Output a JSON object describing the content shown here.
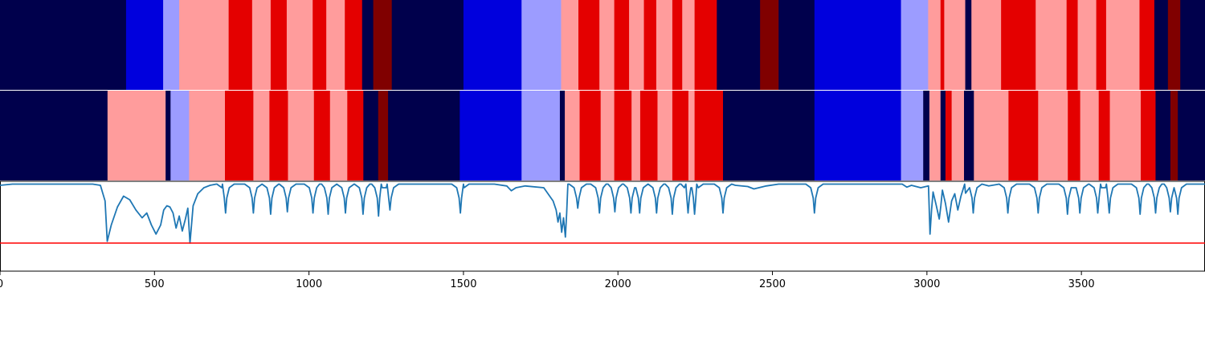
{
  "chart_data": [
    {
      "type": "heatmap",
      "panel": "top-strip",
      "colormap": "seismic",
      "xlim": [
        0,
        3900
      ],
      "segments": [
        {
          "x0": 0,
          "x1": 408,
          "color": "#00004c"
        },
        {
          "x0": 408,
          "x1": 528,
          "color": "#0000dd"
        },
        {
          "x0": 528,
          "x1": 580,
          "color": "#9c9cff"
        },
        {
          "x0": 580,
          "x1": 740,
          "color": "#ff9c9c"
        },
        {
          "x0": 740,
          "x1": 816,
          "color": "#e40000"
        },
        {
          "x0": 816,
          "x1": 876,
          "color": "#ff9c9c"
        },
        {
          "x0": 876,
          "x1": 928,
          "color": "#e40000"
        },
        {
          "x0": 928,
          "x1": 1012,
          "color": "#ff9c9c"
        },
        {
          "x0": 1012,
          "x1": 1056,
          "color": "#e40000"
        },
        {
          "x0": 1056,
          "x1": 1116,
          "color": "#ff9c9c"
        },
        {
          "x0": 1116,
          "x1": 1172,
          "color": "#e40000"
        },
        {
          "x0": 1172,
          "x1": 1208,
          "color": "#00004c"
        },
        {
          "x0": 1208,
          "x1": 1268,
          "color": "#800000"
        },
        {
          "x0": 1268,
          "x1": 1500,
          "color": "#00004c"
        },
        {
          "x0": 1500,
          "x1": 1688,
          "color": "#0000dd"
        },
        {
          "x0": 1688,
          "x1": 1816,
          "color": "#9c9cff"
        },
        {
          "x0": 1816,
          "x1": 1872,
          "color": "#ff9c9c"
        },
        {
          "x0": 1872,
          "x1": 1940,
          "color": "#e40000"
        },
        {
          "x0": 1940,
          "x1": 1988,
          "color": "#ff9c9c"
        },
        {
          "x0": 1988,
          "x1": 2036,
          "color": "#e40000"
        },
        {
          "x0": 2036,
          "x1": 2084,
          "color": "#ff9c9c"
        },
        {
          "x0": 2084,
          "x1": 2124,
          "color": "#e40000"
        },
        {
          "x0": 2124,
          "x1": 2176,
          "color": "#ff9c9c"
        },
        {
          "x0": 2176,
          "x1": 2208,
          "color": "#e40000"
        },
        {
          "x0": 2208,
          "x1": 2248,
          "color": "#ff9c9c"
        },
        {
          "x0": 2248,
          "x1": 2320,
          "color": "#e40000"
        },
        {
          "x0": 2320,
          "x1": 2460,
          "color": "#00004c"
        },
        {
          "x0": 2460,
          "x1": 2520,
          "color": "#800000"
        },
        {
          "x0": 2520,
          "x1": 2636,
          "color": "#00004c"
        },
        {
          "x0": 2636,
          "x1": 2916,
          "color": "#0000dd"
        },
        {
          "x0": 2916,
          "x1": 3004,
          "color": "#9c9cff"
        },
        {
          "x0": 3004,
          "x1": 3044,
          "color": "#ff9c9c"
        },
        {
          "x0": 3044,
          "x1": 3056,
          "color": "#e40000"
        },
        {
          "x0": 3056,
          "x1": 3124,
          "color": "#ff9c9c"
        },
        {
          "x0": 3124,
          "x1": 3144,
          "color": "#00004c"
        },
        {
          "x0": 3144,
          "x1": 3240,
          "color": "#ff9c9c"
        },
        {
          "x0": 3240,
          "x1": 3352,
          "color": "#e40000"
        },
        {
          "x0": 3352,
          "x1": 3452,
          "color": "#ff9c9c"
        },
        {
          "x0": 3452,
          "x1": 3488,
          "color": "#e40000"
        },
        {
          "x0": 3488,
          "x1": 3548,
          "color": "#ff9c9c"
        },
        {
          "x0": 3548,
          "x1": 3580,
          "color": "#e40000"
        },
        {
          "x0": 3580,
          "x1": 3688,
          "color": "#ff9c9c"
        },
        {
          "x0": 3688,
          "x1": 3736,
          "color": "#e40000"
        },
        {
          "x0": 3736,
          "x1": 3780,
          "color": "#00004c"
        },
        {
          "x0": 3780,
          "x1": 3820,
          "color": "#800000"
        },
        {
          "x0": 3820,
          "x1": 3900,
          "color": "#00004c"
        }
      ]
    },
    {
      "type": "heatmap",
      "panel": "middle-strip",
      "colormap": "seismic",
      "xlim": [
        0,
        3900
      ],
      "segments": [
        {
          "x0": 0,
          "x1": 348,
          "color": "#00004c"
        },
        {
          "x0": 348,
          "x1": 536,
          "color": "#ff9c9c"
        },
        {
          "x0": 536,
          "x1": 552,
          "color": "#00004c"
        },
        {
          "x0": 552,
          "x1": 612,
          "color": "#9c9cff"
        },
        {
          "x0": 612,
          "x1": 728,
          "color": "#ff9c9c"
        },
        {
          "x0": 728,
          "x1": 820,
          "color": "#e40000"
        },
        {
          "x0": 820,
          "x1": 872,
          "color": "#ff9c9c"
        },
        {
          "x0": 872,
          "x1": 932,
          "color": "#e40000"
        },
        {
          "x0": 932,
          "x1": 1016,
          "color": "#ff9c9c"
        },
        {
          "x0": 1016,
          "x1": 1068,
          "color": "#e40000"
        },
        {
          "x0": 1068,
          "x1": 1124,
          "color": "#ff9c9c"
        },
        {
          "x0": 1124,
          "x1": 1176,
          "color": "#e40000"
        },
        {
          "x0": 1176,
          "x1": 1224,
          "color": "#00004c"
        },
        {
          "x0": 1224,
          "x1": 1256,
          "color": "#800000"
        },
        {
          "x0": 1256,
          "x1": 1488,
          "color": "#00004c"
        },
        {
          "x0": 1488,
          "x1": 1688,
          "color": "#0000dd"
        },
        {
          "x0": 1688,
          "x1": 1812,
          "color": "#9c9cff"
        },
        {
          "x0": 1812,
          "x1": 1828,
          "color": "#00004c"
        },
        {
          "x0": 1828,
          "x1": 1876,
          "color": "#ff9c9c"
        },
        {
          "x0": 1876,
          "x1": 1944,
          "color": "#e40000"
        },
        {
          "x0": 1944,
          "x1": 1988,
          "color": "#ff9c9c"
        },
        {
          "x0": 1988,
          "x1": 2044,
          "color": "#e40000"
        },
        {
          "x0": 2044,
          "x1": 2072,
          "color": "#ff9c9c"
        },
        {
          "x0": 2072,
          "x1": 2128,
          "color": "#e40000"
        },
        {
          "x0": 2128,
          "x1": 2176,
          "color": "#ff9c9c"
        },
        {
          "x0": 2176,
          "x1": 2228,
          "color": "#e40000"
        },
        {
          "x0": 2228,
          "x1": 2248,
          "color": "#ff9c9c"
        },
        {
          "x0": 2248,
          "x1": 2340,
          "color": "#e40000"
        },
        {
          "x0": 2340,
          "x1": 2636,
          "color": "#00004c"
        },
        {
          "x0": 2636,
          "x1": 2916,
          "color": "#0000dd"
        },
        {
          "x0": 2916,
          "x1": 2988,
          "color": "#9c9cff"
        },
        {
          "x0": 2988,
          "x1": 3008,
          "color": "#00004c"
        },
        {
          "x0": 3008,
          "x1": 3044,
          "color": "#ff9c9c"
        },
        {
          "x0": 3044,
          "x1": 3060,
          "color": "#00004c"
        },
        {
          "x0": 3060,
          "x1": 3080,
          "color": "#e40000"
        },
        {
          "x0": 3080,
          "x1": 3120,
          "color": "#ff9c9c"
        },
        {
          "x0": 3120,
          "x1": 3152,
          "color": "#00004c"
        },
        {
          "x0": 3152,
          "x1": 3264,
          "color": "#ff9c9c"
        },
        {
          "x0": 3264,
          "x1": 3360,
          "color": "#e40000"
        },
        {
          "x0": 3360,
          "x1": 3456,
          "color": "#ff9c9c"
        },
        {
          "x0": 3456,
          "x1": 3496,
          "color": "#e40000"
        },
        {
          "x0": 3496,
          "x1": 3556,
          "color": "#ff9c9c"
        },
        {
          "x0": 3556,
          "x1": 3592,
          "color": "#e40000"
        },
        {
          "x0": 3592,
          "x1": 3692,
          "color": "#ff9c9c"
        },
        {
          "x0": 3692,
          "x1": 3740,
          "color": "#e40000"
        },
        {
          "x0": 3740,
          "x1": 3788,
          "color": "#00004c"
        },
        {
          "x0": 3788,
          "x1": 3812,
          "color": "#800000"
        },
        {
          "x0": 3812,
          "x1": 3900,
          "color": "#00004c"
        }
      ]
    },
    {
      "type": "line",
      "panel": "bottom-plot",
      "xlim": [
        0,
        3900
      ],
      "ylim": [
        0,
        1
      ],
      "x_ticks": [
        "0",
        "500",
        "1000",
        "1500",
        "2000",
        "2500",
        "3000",
        "3500"
      ],
      "x_tick_values": [
        0,
        500,
        1000,
        1500,
        2000,
        2500,
        3000,
        3500
      ],
      "grid": false,
      "series": [
        {
          "color": "#1f77b4",
          "baseline": 0.98,
          "x": [
            0,
            40,
            80,
            160,
            240,
            300,
            325,
            340,
            347,
            360,
            380,
            400,
            420,
            440,
            460,
            475,
            490,
            505,
            520,
            530,
            540,
            550,
            560,
            570,
            580,
            590,
            600,
            608,
            615,
            625,
            640,
            660,
            680,
            700,
            720,
            1500,
            1560,
            1600,
            1640,
            1655,
            1670,
            1700,
            1760,
            1790,
            1800,
            1806,
            1812,
            1818,
            1824,
            1830,
            1834,
            1838,
            2340,
            2380,
            2420,
            2440,
            2480,
            2520,
            2600,
            2920,
            2935,
            2950,
            2980,
            3005,
            3010,
            3015,
            3020,
            3030,
            3040,
            3045,
            3050,
            3060,
            3070,
            3080,
            3090,
            3100,
            3110,
            3125,
            3150,
            3200,
            3900
          ],
          "y": [
            0.96,
            0.98,
            0.98,
            0.98,
            0.98,
            0.98,
            0.96,
            0.7,
            0.03,
            0.3,
            0.6,
            0.78,
            0.72,
            0.55,
            0.42,
            0.5,
            0.3,
            0.15,
            0.3,
            0.55,
            0.62,
            0.6,
            0.5,
            0.25,
            0.45,
            0.2,
            0.4,
            0.58,
            0.0,
            0.62,
            0.82,
            0.92,
            0.96,
            0.98,
            0.98,
            0.98,
            0.98,
            0.98,
            0.95,
            0.87,
            0.92,
            0.95,
            0.92,
            0.7,
            0.55,
            0.35,
            0.5,
            0.18,
            0.42,
            0.1,
            0.5,
            0.98,
            0.98,
            0.96,
            0.94,
            0.9,
            0.95,
            0.98,
            0.98,
            0.98,
            0.93,
            0.96,
            0.92,
            0.95,
            0.15,
            0.55,
            0.85,
            0.63,
            0.4,
            0.62,
            0.88,
            0.66,
            0.35,
            0.7,
            0.82,
            0.55,
            0.78,
            0.83,
            0.9,
            0.95,
            0.98
          ]
        }
      ],
      "dips": [
        {
          "x": 730,
          "y": 0.5
        },
        {
          "x": 820,
          "y": 0.5
        },
        {
          "x": 876,
          "y": 0.48
        },
        {
          "x": 930,
          "y": 0.52
        },
        {
          "x": 1013,
          "y": 0.5
        },
        {
          "x": 1062,
          "y": 0.48
        },
        {
          "x": 1118,
          "y": 0.5
        },
        {
          "x": 1175,
          "y": 0.48
        },
        {
          "x": 1225,
          "y": 0.45
        },
        {
          "x": 1262,
          "y": 0.55
        },
        {
          "x": 1490,
          "y": 0.5
        },
        {
          "x": 1870,
          "y": 0.58
        },
        {
          "x": 1940,
          "y": 0.5
        },
        {
          "x": 1990,
          "y": 0.52
        },
        {
          "x": 2042,
          "y": 0.5
        },
        {
          "x": 2070,
          "y": 0.5
        },
        {
          "x": 2125,
          "y": 0.5
        },
        {
          "x": 2176,
          "y": 0.48
        },
        {
          "x": 2227,
          "y": 0.5
        },
        {
          "x": 2248,
          "y": 0.48
        },
        {
          "x": 2340,
          "y": 0.5
        },
        {
          "x": 2636,
          "y": 0.5
        },
        {
          "x": 3150,
          "y": 0.5
        },
        {
          "x": 3262,
          "y": 0.5
        },
        {
          "x": 3360,
          "y": 0.5
        },
        {
          "x": 3455,
          "y": 0.48
        },
        {
          "x": 3495,
          "y": 0.5
        },
        {
          "x": 3553,
          "y": 0.5
        },
        {
          "x": 3590,
          "y": 0.5
        },
        {
          "x": 3690,
          "y": 0.48
        },
        {
          "x": 3740,
          "y": 0.5
        },
        {
          "x": 3788,
          "y": 0.52
        },
        {
          "x": 3812,
          "y": 0.48
        }
      ],
      "threshold": {
        "y": 0.0,
        "color": "#ff0000"
      }
    }
  ]
}
